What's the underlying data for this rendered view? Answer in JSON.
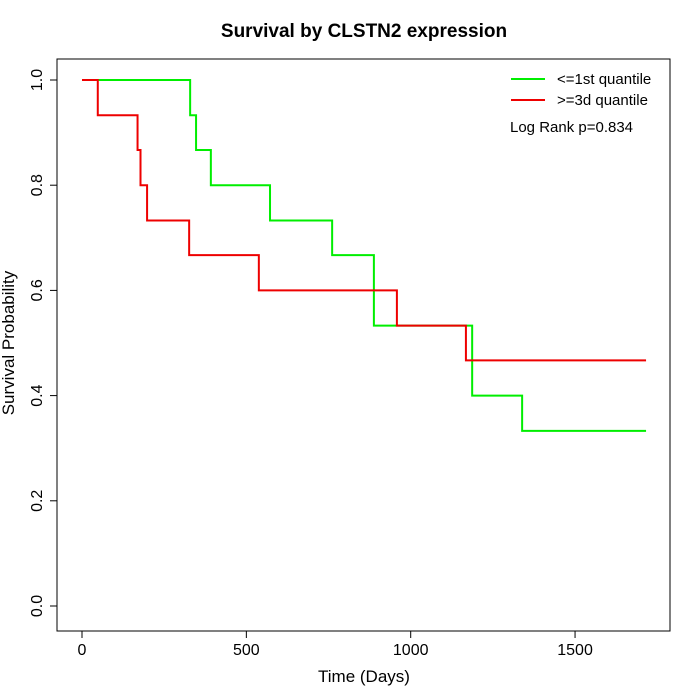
{
  "chart_data": {
    "type": "line",
    "title": "Survival by CLSTN2 expression",
    "xlabel": "Time (Days)",
    "ylabel": "Survival Probability",
    "xlim": [
      0,
      1716
    ],
    "ylim": [
      0,
      1
    ],
    "xticks": [
      0,
      500,
      1000,
      1500
    ],
    "yticks": [
      0.0,
      0.2,
      0.4,
      0.6,
      0.8,
      1.0
    ],
    "ytick_labels": [
      "0.0",
      "0.2",
      "0.4",
      "0.6",
      "0.8",
      "1.0"
    ],
    "legend_position": "top-right",
    "annotation": "Log Rank p=0.834",
    "series": [
      {
        "name": "<=1st quantile",
        "color": "#00ee00",
        "steps": [
          [
            0,
            1.0
          ],
          [
            329,
            0.933
          ],
          [
            347,
            0.867
          ],
          [
            392,
            0.8
          ],
          [
            572,
            0.733
          ],
          [
            761,
            0.667
          ],
          [
            888,
            0.533
          ],
          [
            1187,
            0.4
          ],
          [
            1339,
            0.333
          ]
        ],
        "end": 1716
      },
      {
        "name": ">=3d quantile",
        "color": "#ee0000",
        "steps": [
          [
            0,
            1.0
          ],
          [
            48,
            0.933
          ],
          [
            169,
            0.867
          ],
          [
            178,
            0.8
          ],
          [
            198,
            0.733
          ],
          [
            326,
            0.667
          ],
          [
            538,
            0.6
          ],
          [
            958,
            0.533
          ],
          [
            1168,
            0.467
          ]
        ],
        "end": 1716
      }
    ]
  }
}
